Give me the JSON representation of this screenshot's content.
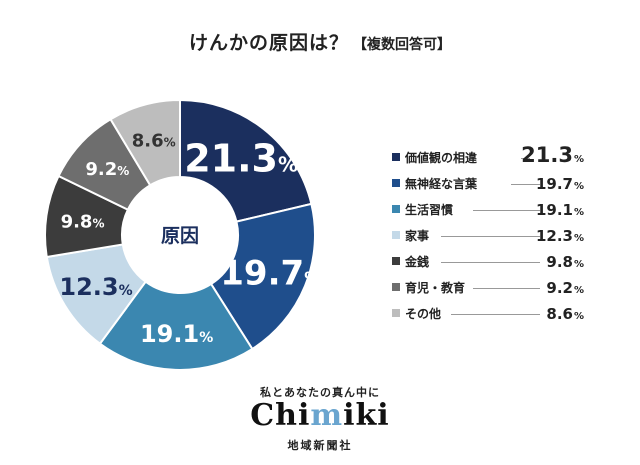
{
  "title": {
    "main": "けんかの原因は？",
    "sub": "【複数回答可】"
  },
  "chart_data": {
    "type": "pie",
    "title": "けんかの原因は？【複数回答可】",
    "center_label": "原因",
    "unit": "%",
    "categories": [
      "価値観の相違",
      "無神経な言葉",
      "生活習慣",
      "家事",
      "金銭",
      "育児・教育",
      "その他"
    ],
    "values": [
      21.3,
      19.7,
      19.1,
      12.3,
      9.8,
      9.2,
      8.6
    ],
    "value_labels": [
      {
        "int": "21.",
        "dec": "3",
        "pct": "%"
      },
      {
        "int": "19.",
        "dec": "7",
        "pct": "%"
      },
      {
        "int": "19.",
        "dec": "1",
        "pct": "%"
      },
      {
        "int": "12.",
        "dec": "3",
        "pct": "%"
      },
      {
        "int": "9.",
        "dec": "8",
        "pct": "%"
      },
      {
        "int": "9.",
        "dec": "2",
        "pct": "%"
      },
      {
        "int": "8.",
        "dec": "6",
        "pct": "%"
      }
    ],
    "colors": [
      "#1b2f5e",
      "#1f4e8c",
      "#3b87b0",
      "#c4d9e8",
      "#3c3c3c",
      "#6e6e6e",
      "#bdbdbd"
    ],
    "label_colors": [
      "#ffffff",
      "#ffffff",
      "#ffffff",
      "#1b2f5e",
      "#ffffff",
      "#ffffff",
      "#333333"
    ],
    "legend_position": "right"
  },
  "footer": {
    "tagline": "私とあなたの真ん中に",
    "logo_a": "Chi",
    "logo_b": "m",
    "logo_c": "iki",
    "company": "地域新聞社"
  }
}
